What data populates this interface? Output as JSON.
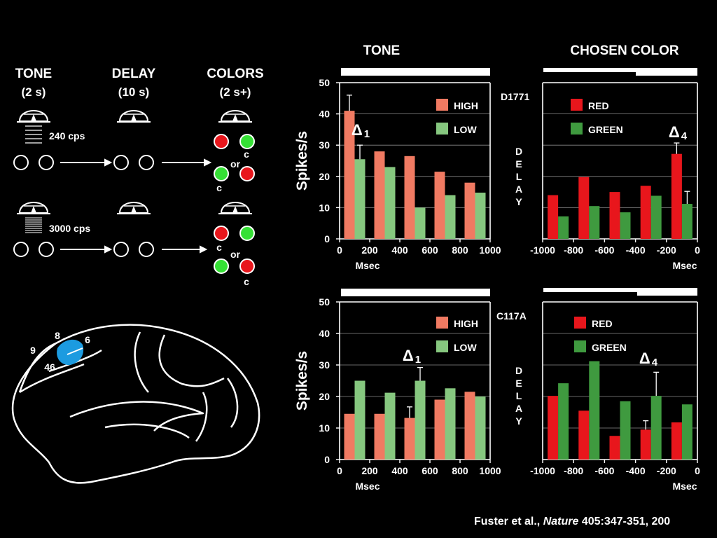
{
  "colors": {
    "background": "#000000",
    "foreground": "#ffffff",
    "high": "#f07a62",
    "low": "#86c77f",
    "red": "#e8161c",
    "green": "#3f9a3f",
    "patch": "#1c9be0",
    "stim_red": "#e8161c",
    "stim_green": "#35e035"
  },
  "task": {
    "tone_title": "TONE",
    "tone_dur": "(2 s)",
    "delay_title": "DELAY",
    "delay_dur": "(10 s)",
    "colors_title": "COLORS",
    "colors_dur": "(2 s+)",
    "tone1": "240 cps",
    "tone2": "3000 cps",
    "or_label": "or",
    "c_label": "c"
  },
  "brain": {
    "areas": [
      "8",
      "6",
      "9",
      "46"
    ]
  },
  "headers": {
    "tone": "TONE",
    "chosen": "CHOSEN COLOR"
  },
  "citation": {
    "authors": "Fuster et al., ",
    "journal": "Nature",
    "ref": " 405:347-351, 200"
  },
  "chart_data": [
    {
      "type": "bar",
      "panel": "tone-top",
      "ylabel": "Spikes/s",
      "xlabel": "Msec",
      "ylim": [
        0,
        50
      ],
      "xlim": [
        0,
        1000
      ],
      "yticks": [
        "0",
        "10",
        "20",
        "30",
        "40",
        "50"
      ],
      "xticks": [
        "0",
        "200",
        "400",
        "600",
        "800",
        "1000"
      ],
      "x": [
        100,
        300,
        500,
        700,
        900
      ],
      "series": [
        {
          "name": "HIGH",
          "values": [
            41,
            28,
            26.5,
            21.5,
            18
          ],
          "errors": [
            5,
            0,
            0,
            0,
            0
          ]
        },
        {
          "name": "LOW",
          "values": [
            25.5,
            23,
            10,
            14,
            14.8
          ],
          "errors": [
            4.5,
            0,
            0,
            0,
            0
          ]
        }
      ],
      "annotation": {
        "symbol": "Δ",
        "sub": "1"
      },
      "delay_label": "DELAY"
    },
    {
      "type": "bar",
      "panel": "color-top",
      "cell": "D1771",
      "xlabel": "Msec",
      "ylim": [
        0,
        50
      ],
      "xlim": [
        -1000,
        0
      ],
      "xticks": [
        "-1000",
        "-800",
        "-600",
        "-400",
        "-200",
        "0"
      ],
      "x": [
        -900,
        -700,
        -500,
        -300,
        -100
      ],
      "series": [
        {
          "name": "RED",
          "values": [
            14,
            19.8,
            15,
            17,
            27.2
          ],
          "errors": [
            0,
            0,
            0,
            0,
            3.5
          ]
        },
        {
          "name": "GREEN",
          "values": [
            7.2,
            10.5,
            8.5,
            13.8,
            11.2
          ],
          "errors": [
            0,
            0,
            0,
            0,
            4
          ]
        }
      ],
      "annotation": {
        "symbol": "Δ",
        "sub": "4"
      }
    },
    {
      "type": "bar",
      "panel": "tone-bottom",
      "ylabel": "Spikes/s",
      "xlabel": "Msec",
      "ylim": [
        0,
        50
      ],
      "xlim": [
        0,
        1000
      ],
      "yticks": [
        "0",
        "10",
        "20",
        "30",
        "40",
        "50"
      ],
      "xticks": [
        "0",
        "200",
        "400",
        "600",
        "800",
        "1000"
      ],
      "x": [
        100,
        300,
        500,
        700,
        900
      ],
      "series": [
        {
          "name": "HIGH",
          "values": [
            14.5,
            14.5,
            13.2,
            19,
            21.5
          ],
          "errors": [
            0,
            0,
            3.5,
            0,
            0
          ]
        },
        {
          "name": "LOW",
          "values": [
            25,
            21.2,
            25,
            22.6,
            20
          ],
          "errors": [
            0,
            0,
            4.2,
            0,
            0
          ]
        }
      ],
      "annotation": {
        "symbol": "Δ",
        "sub": "1"
      },
      "delay_label": "DELAY"
    },
    {
      "type": "bar",
      "panel": "color-bottom",
      "cell": "C117A",
      "xlabel": "Msec",
      "ylim": [
        0,
        50
      ],
      "xlim": [
        -1000,
        0
      ],
      "xticks": [
        "-1000",
        "-800",
        "-600",
        "-400",
        "-200",
        "0"
      ],
      "x": [
        -900,
        -700,
        -500,
        -300,
        -100
      ],
      "series": [
        {
          "name": "RED",
          "values": [
            20.2,
            15.5,
            7.5,
            9.5,
            11.8
          ],
          "errors": [
            0,
            0,
            0,
            2.8,
            0
          ]
        },
        {
          "name": "GREEN",
          "values": [
            24.2,
            31.2,
            18.5,
            20.2,
            17.5
          ],
          "errors": [
            0,
            0,
            0,
            7.5,
            0
          ]
        }
      ],
      "annotation": {
        "symbol": "Δ",
        "sub": "4"
      }
    }
  ]
}
